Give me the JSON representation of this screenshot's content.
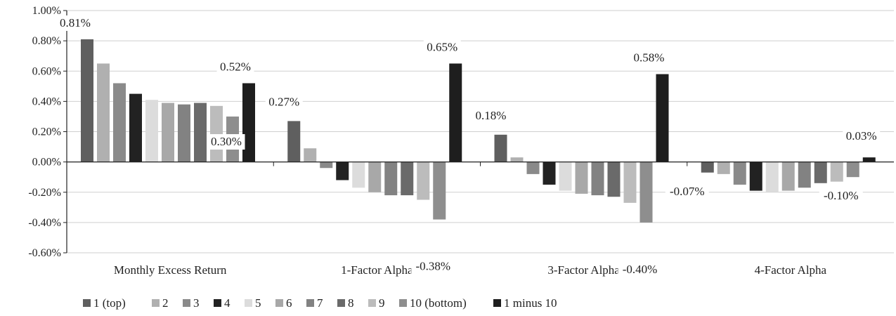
{
  "chart_data": {
    "type": "bar",
    "categories": [
      "Monthly Excess Return",
      "1-Factor Alpha",
      "3-Factor Alpha",
      "4-Factor Alpha"
    ],
    "series": [
      {
        "name": "1 (top)",
        "color": "#5f5f5f",
        "values": [
          0.81,
          0.27,
          0.18,
          -0.07
        ]
      },
      {
        "name": "2",
        "color": "#b0b0b0",
        "values": [
          0.65,
          0.09,
          0.03,
          -0.08
        ]
      },
      {
        "name": "3",
        "color": "#8a8a8a",
        "values": [
          0.52,
          -0.04,
          -0.08,
          -0.15
        ]
      },
      {
        "name": "4",
        "color": "#222222",
        "values": [
          0.45,
          -0.12,
          -0.15,
          -0.19
        ]
      },
      {
        "name": "5",
        "color": "#dcdcdc",
        "values": [
          0.41,
          -0.17,
          -0.19,
          -0.2
        ]
      },
      {
        "name": "6",
        "color": "#a8a8a8",
        "values": [
          0.39,
          -0.2,
          -0.21,
          -0.19
        ]
      },
      {
        "name": "7",
        "color": "#828282",
        "values": [
          0.38,
          -0.22,
          -0.22,
          -0.17
        ]
      },
      {
        "name": "8",
        "color": "#6a6a6a",
        "values": [
          0.39,
          -0.22,
          -0.23,
          -0.14
        ]
      },
      {
        "name": "9",
        "color": "#bcbcbc",
        "values": [
          0.37,
          -0.25,
          -0.27,
          -0.13
        ]
      },
      {
        "name": "10 (bottom)",
        "color": "#8e8e8e",
        "values": [
          0.3,
          -0.38,
          -0.4,
          -0.1
        ]
      },
      {
        "name": "1 minus 10",
        "color": "#1e1e1e",
        "values": [
          0.52,
          0.65,
          0.58,
          0.03
        ]
      }
    ],
    "ylim": [
      -0.6,
      1.0
    ],
    "yticks": [
      -0.6,
      -0.4,
      -0.2,
      0.0,
      0.2,
      0.4,
      0.6,
      0.8,
      1.0
    ],
    "ytick_labels": [
      "-0.60%",
      "-0.40%",
      "-0.20%",
      "0.00%",
      "0.20%",
      "0.40%",
      "0.60%",
      "0.80%",
      "1.00%"
    ],
    "grid": true,
    "legend_position": "bottom-left",
    "data_labels": [
      {
        "category": 0,
        "series": 0,
        "text": "0.81%"
      },
      {
        "category": 0,
        "series": 10,
        "text": "0.52%"
      },
      {
        "category": 0,
        "series": 9,
        "text": "0.30%"
      },
      {
        "category": 1,
        "series": 0,
        "text": "0.27%"
      },
      {
        "category": 1,
        "series": 10,
        "text": "0.65%"
      },
      {
        "category": 1,
        "series": 9,
        "text": "-0.38%"
      },
      {
        "category": 2,
        "series": 0,
        "text": "0.18%"
      },
      {
        "category": 2,
        "series": 10,
        "text": "0.58%"
      },
      {
        "category": 2,
        "series": 9,
        "text": "-0.40%"
      },
      {
        "category": 3,
        "series": 0,
        "text": "-0.07%"
      },
      {
        "category": 3,
        "series": 10,
        "text": "0.03%"
      },
      {
        "category": 3,
        "series": 9,
        "text": "-0.10%"
      }
    ]
  }
}
